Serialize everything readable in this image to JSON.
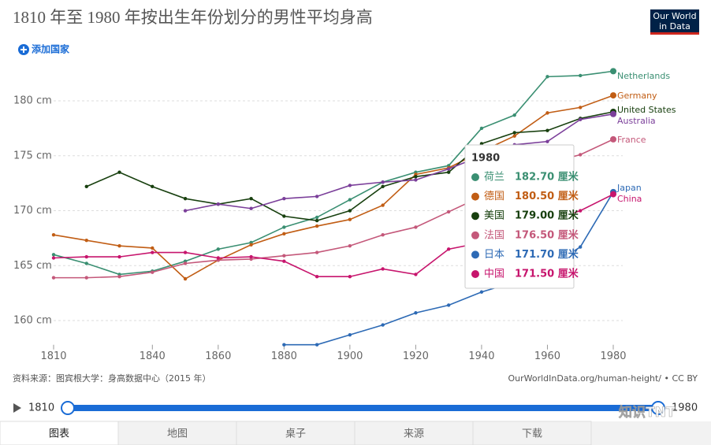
{
  "chart_data": {
    "type": "line",
    "title": "1810 年至 1980 年按出生年份划分的男性平均身高",
    "x": [
      1810,
      1820,
      1830,
      1840,
      1850,
      1860,
      1870,
      1880,
      1890,
      1900,
      1910,
      1920,
      1930,
      1940,
      1950,
      1960,
      1970,
      1980
    ],
    "xlim": [
      1810,
      1980
    ],
    "xticks": [
      1810,
      1840,
      1860,
      1880,
      1900,
      1920,
      1940,
      1960,
      1980
    ],
    "ylim": [
      157.8,
      183.1
    ],
    "yticks": [
      {
        "value": 160,
        "label": "160 cm"
      },
      {
        "value": 165,
        "label": "165 cm"
      },
      {
        "value": 170,
        "label": "170 cm"
      },
      {
        "value": 175,
        "label": "175 cm"
      },
      {
        "value": 180,
        "label": "180 cm"
      }
    ],
    "grid": true,
    "series": [
      {
        "name": "Netherlands",
        "color": "#3a8f72",
        "values": [
          166.0,
          165.2,
          164.2,
          164.5,
          165.4,
          166.5,
          167.1,
          168.5,
          169.4,
          171.0,
          172.6,
          173.5,
          174.1,
          177.5,
          178.7,
          182.2,
          182.3,
          182.7
        ]
      },
      {
        "name": "Germany",
        "color": "#c15d14",
        "values": [
          167.8,
          167.3,
          166.8,
          166.6,
          163.8,
          165.5,
          166.9,
          167.9,
          168.6,
          169.2,
          170.5,
          173.3,
          173.9,
          175.4,
          176.8,
          178.9,
          179.4,
          180.5
        ]
      },
      {
        "name": "United States",
        "color": "#18400f",
        "values": [
          null,
          172.2,
          173.5,
          172.2,
          171.1,
          170.6,
          171.1,
          169.5,
          169.1,
          170.0,
          172.2,
          173.1,
          173.5,
          176.1,
          177.1,
          177.3,
          178.4,
          179.0
        ]
      },
      {
        "name": "Australia",
        "color": "#7b3f9a",
        "values": [
          null,
          null,
          null,
          null,
          170.0,
          170.6,
          170.2,
          171.1,
          171.3,
          172.3,
          172.6,
          172.8,
          173.8,
          175.0,
          176.0,
          176.3,
          178.3,
          178.8
        ]
      },
      {
        "name": "France",
        "color": "#c4587a",
        "values": [
          163.9,
          163.9,
          164.0,
          164.4,
          165.2,
          165.5,
          165.6,
          165.9,
          166.2,
          166.8,
          167.8,
          168.5,
          169.9,
          171.3,
          173.0,
          174.3,
          175.1,
          176.5
        ]
      },
      {
        "name": "Japan",
        "color": "#2d6ab5",
        "values": [
          null,
          null,
          null,
          null,
          null,
          null,
          null,
          157.8,
          157.8,
          158.7,
          159.6,
          160.7,
          161.4,
          162.6,
          163.5,
          164.8,
          166.7,
          171.7
        ]
      },
      {
        "name": "China",
        "color": "#c7156d",
        "values": [
          165.7,
          165.8,
          165.8,
          166.2,
          166.2,
          165.7,
          165.8,
          165.4,
          164.0,
          164.0,
          164.7,
          164.2,
          166.5,
          167.1,
          168.0,
          169.0,
          170.0,
          171.5
        ]
      }
    ],
    "tooltip": {
      "title": "1980",
      "rows": [
        {
          "name": "荷兰",
          "value": "182.70 厘米",
          "color": "#3a8f72"
        },
        {
          "name": "德国",
          "value": "180.50 厘米",
          "color": "#c15d14"
        },
        {
          "name": "美国",
          "value": "179.00 厘米",
          "color": "#18400f"
        },
        {
          "name": "法国",
          "value": "176.50 厘米",
          "color": "#c4587a"
        },
        {
          "name": "日本",
          "value": "171.70 厘米",
          "color": "#2d6ab5"
        },
        {
          "name": "中国",
          "value": "171.50 厘米",
          "color": "#c7156d"
        }
      ]
    }
  },
  "ui": {
    "logo": [
      "Our World",
      "in Data"
    ],
    "add_country": "添加国家",
    "source": "资料来源：图宾根大学：身高数据中心（2015 年）",
    "url": "OurWorldInData.org/human-height/ • CC BY",
    "timeline_start": "1810",
    "timeline_end": "1980",
    "watermark": "知识TNT",
    "tabs": [
      "图表",
      "地图",
      "桌子",
      "来源",
      "下载"
    ]
  }
}
